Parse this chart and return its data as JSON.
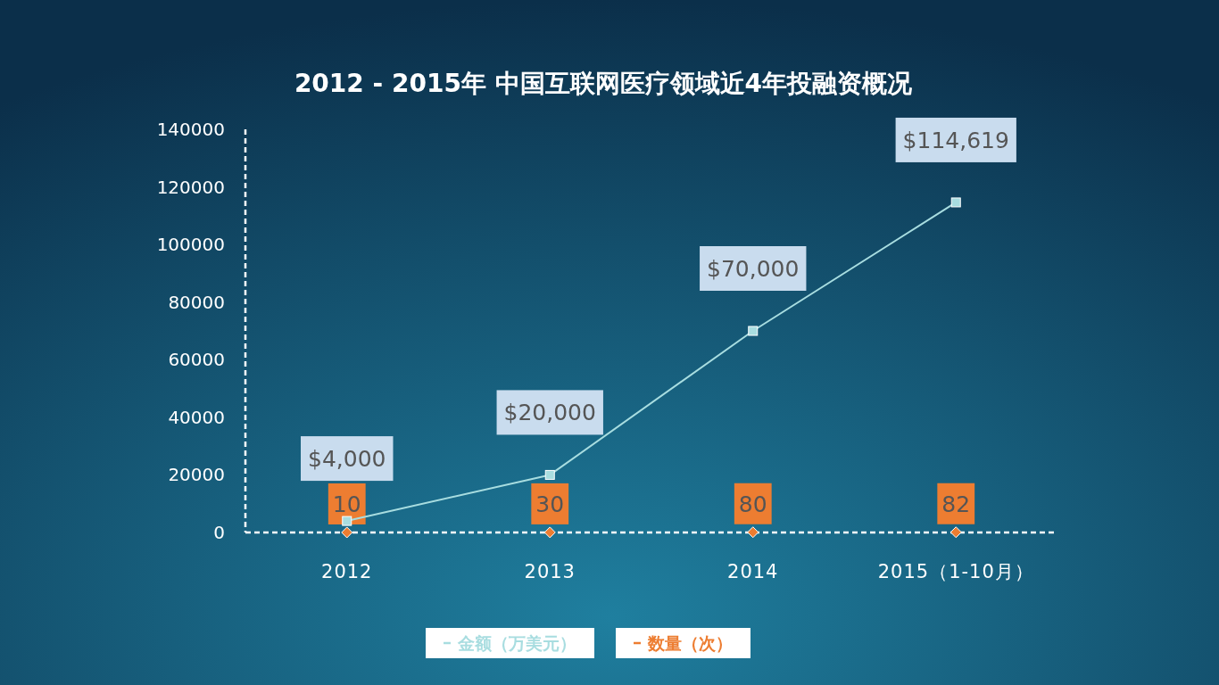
{
  "chart_data": {
    "type": "line",
    "title": "2012 - 2015年  中国互联网医疗领域近4年投融资概况",
    "categories": [
      "2012",
      "2013",
      "2014",
      "2015（1-10月）"
    ],
    "series": [
      {
        "name": "金额（万美元）",
        "color": "#a8dde0",
        "marker": "square",
        "values": [
          4000,
          20000,
          70000,
          114619
        ],
        "value_labels": [
          "$4,000",
          "$20,000",
          "$70,000",
          "$114,619"
        ]
      },
      {
        "name": "数量（次）",
        "type": "scatter",
        "color": "#ed7d31",
        "marker": "diamond",
        "values": [
          10,
          30,
          80,
          82
        ],
        "value_labels": [
          "10",
          "30",
          "80",
          "82"
        ]
      }
    ],
    "ylim": [
      0,
      140000
    ],
    "yticks": [
      0,
      20000,
      40000,
      60000,
      80000,
      100000,
      120000,
      140000
    ],
    "legend": "bottom",
    "grid": false
  }
}
